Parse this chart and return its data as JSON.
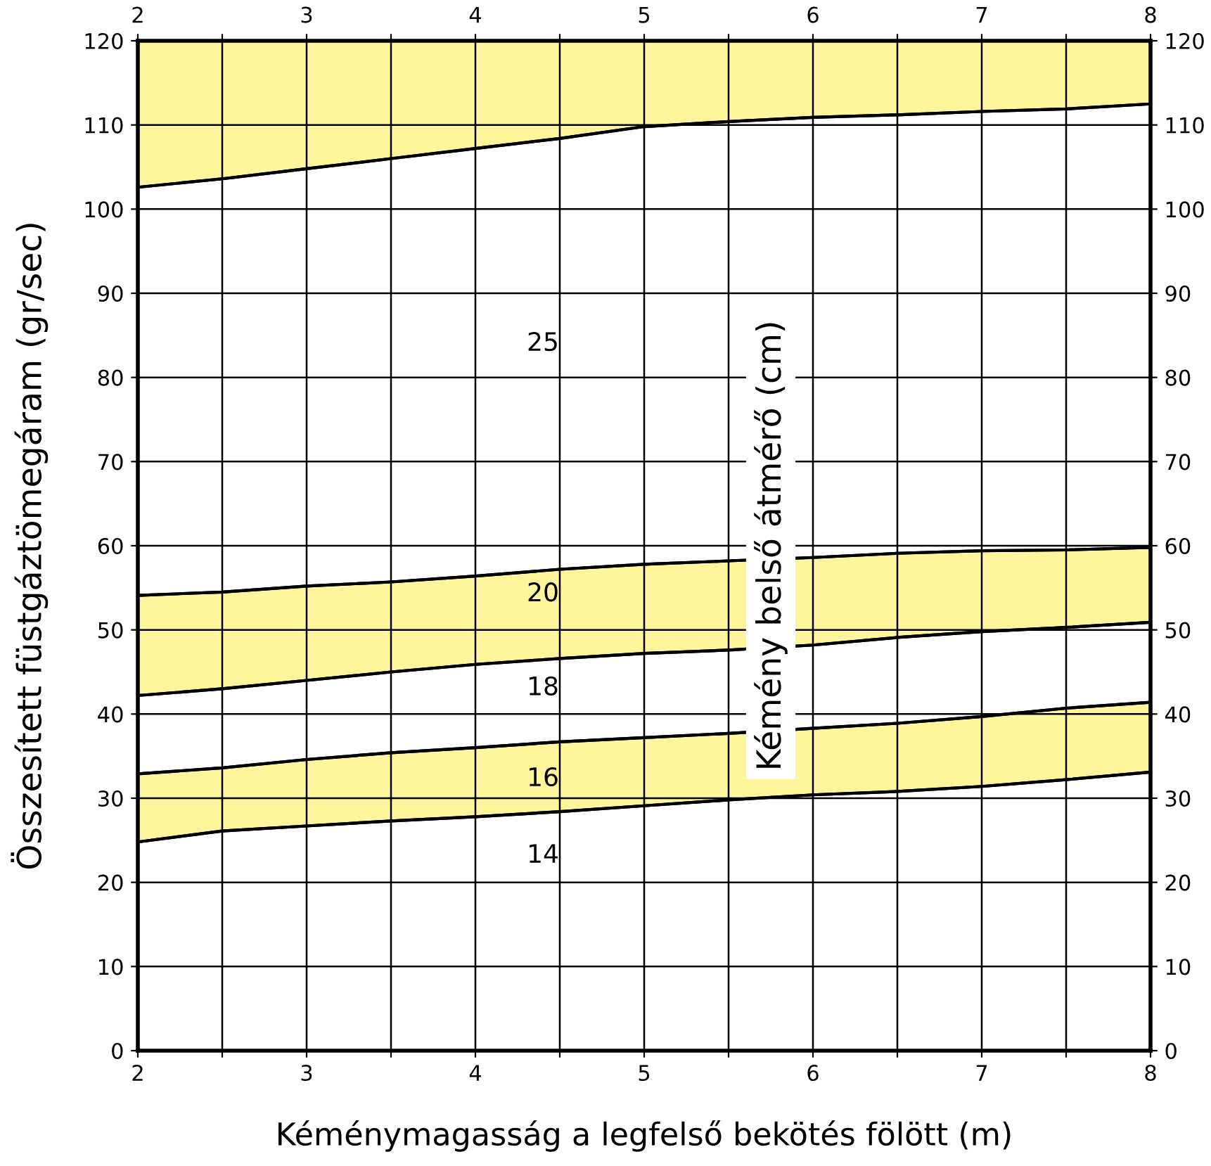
{
  "chart_data": {
    "type": "area",
    "stacked": true,
    "xlabel": "Kéménymagasság a legfelső bekötés fölött (m)",
    "ylabel": "Összesített füstgáztömegáram (gr/sec)",
    "x": [
      2,
      2.5,
      3,
      3.5,
      4,
      4.5,
      5,
      5.5,
      6,
      6.5,
      7,
      7.5,
      8
    ],
    "series": [
      {
        "type": "area",
        "color": "#ffffff",
        "values": [
          24.8,
          26.1,
          26.7,
          27.3,
          27.8,
          28.4,
          29.1,
          29.8,
          30.4,
          30.8,
          31.4,
          32.2,
          33.1
        ]
      },
      {
        "type": "area",
        "color": "#fff59d",
        "values": [
          8.1,
          7.5,
          7.9,
          8.1,
          8.2,
          8.3,
          8.1,
          7.9,
          7.9,
          8.1,
          8.3,
          8.5,
          8.3
        ]
      },
      {
        "type": "area",
        "color": "#ffffff",
        "values": [
          9.3,
          9.4,
          9.4,
          9.6,
          9.9,
          9.9,
          10.0,
          9.9,
          9.9,
          10.2,
          10.1,
          9.6,
          9.5
        ]
      },
      {
        "type": "area",
        "color": "#fff59d",
        "values": [
          11.9,
          11.5,
          11.2,
          10.7,
          10.5,
          10.6,
          10.6,
          10.6,
          10.4,
          10.0,
          9.6,
          9.2,
          8.9
        ]
      },
      {
        "type": "area",
        "color": "#ffffff",
        "values": [
          48.5,
          49.1,
          49.6,
          50.3,
          50.8,
          51.2,
          52.0,
          52.2,
          52.3,
          52.1,
          52.2,
          52.4,
          52.7
        ]
      },
      {
        "type": "area",
        "color": "#fff59d",
        "values": [
          17.4,
          16.4,
          15.2,
          14.0,
          12.8,
          11.6,
          10.2,
          9.6,
          9.1,
          8.8,
          8.4,
          8.1,
          7.5
        ]
      }
    ],
    "annotations": [
      "25",
      "20",
      "18",
      "16",
      "14",
      "Kémény belső átmérő (cm)"
    ],
    "xlim": [
      2,
      8
    ],
    "xticks": [
      2,
      {
        "value": 2.5,
        "label": null
      },
      3,
      {
        "value": 3.5,
        "label": null
      },
      4,
      {
        "value": 4.5,
        "label": null
      },
      5,
      {
        "value": 5.5,
        "label": null
      },
      6,
      {
        "value": 6.5,
        "label": null
      },
      7,
      {
        "value": 7.5,
        "label": null
      },
      8
    ],
    "x2lim": [
      2,
      8
    ],
    "x2ticks": [
      2,
      {
        "value": 2.5,
        "label": null
      },
      3,
      {
        "value": 3.5,
        "label": null
      },
      4,
      {
        "value": 4.5,
        "label": null
      },
      5,
      {
        "value": 5.5,
        "label": null
      },
      6,
      {
        "value": 6.5,
        "label": null
      },
      7,
      {
        "value": 7.5,
        "label": null
      },
      8
    ],
    "ylim": [
      0,
      120
    ],
    "yticks": [
      0,
      10,
      20,
      30,
      40,
      50,
      60,
      70,
      80,
      90,
      100,
      110,
      120
    ],
    "y2lim": [
      0,
      120
    ],
    "y2ticks": [
      0,
      10,
      20,
      30,
      40,
      50,
      60,
      70,
      80,
      90,
      100,
      110,
      120
    ],
    "grid": true,
    "legend": false
  }
}
